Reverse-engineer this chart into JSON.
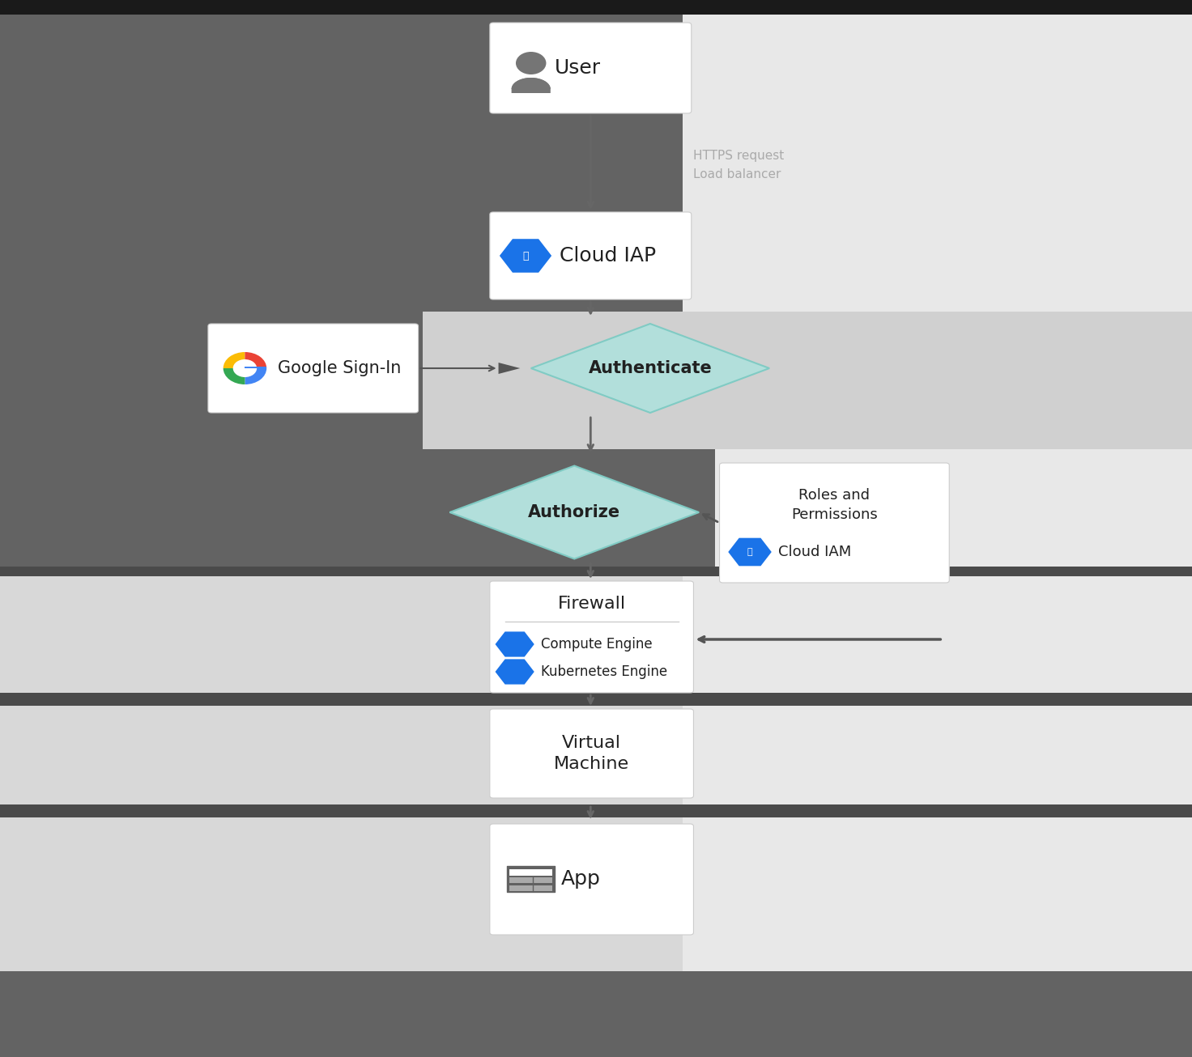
{
  "bg_dark": "#636363",
  "bg_light": "#d8d8d8",
  "bg_section_light": "#e8e8e8",
  "sep_dark": "#4a4a4a",
  "text_dark": "#212121",
  "text_gray": "#757575",
  "diamond_fill": "#b2dfdb",
  "diamond_stroke": "#80cbc4",
  "arrow_dark": "#555555",
  "blue_icon": "#1a73e8",
  "https_label": "HTTPS request",
  "lb_label": "Load balancer",
  "google_signin_text": "Google Sign-In",
  "authenticate_text": "Authenticate",
  "authorize_text": "Authorize",
  "roles_text": "Roles and\nPermissions",
  "cloud_iam_text": "Cloud IAM",
  "firewall_text": "Firewall",
  "compute_engine_text": "Compute Engine",
  "kubernetes_engine_text": "Kubernetes Engine",
  "virtual_machine_text": "Virtual\nMachine",
  "app_text": "App",
  "user_text": "User",
  "cloud_iap_text": "Cloud IAP",
  "fig_w": 14.72,
  "fig_h": 13.06,
  "dpi": 100
}
